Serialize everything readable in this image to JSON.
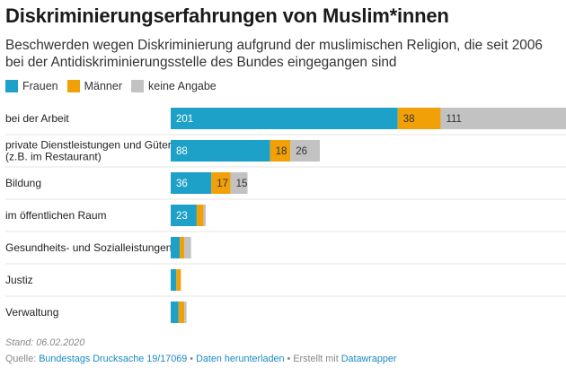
{
  "header": {
    "title": "Diskriminierungserfahrungen von Muslim*innen",
    "subtitle": "Beschwerden wegen Diskriminierung aufgrund der muslimischen Religion, die seit 2006 bei der Antidiskriminierungsstelle des Bundes eingegangen sind"
  },
  "colors": {
    "frauen": "#1da1c8",
    "maenner": "#f2a007",
    "keine": "#c2c2c2"
  },
  "chart_data": {
    "type": "bar",
    "stacked": true,
    "orientation": "horizontal",
    "legend_position": "top-left",
    "grid": false,
    "categories": [
      [
        "bei der Arbeit"
      ],
      [
        "private Dienstleistungen und Güter",
        "(z.B. im Restaurant)"
      ],
      [
        "Bildung"
      ],
      [
        "im öffentlichen Raum"
      ],
      [
        "Gesundheits- und Sozialleistungen"
      ],
      [
        "Justiz"
      ],
      [
        "Verwaltung"
      ]
    ],
    "series": [
      {
        "name": "Frauen",
        "key": "frauen",
        "values": [
          201,
          88,
          36,
          23,
          8,
          5,
          7
        ]
      },
      {
        "name": "Männer",
        "key": "maenner",
        "values": [
          38,
          18,
          17,
          6,
          4,
          4,
          5
        ]
      },
      {
        "name": "keine Angabe",
        "key": "keine",
        "values": [
          111,
          26,
          15,
          2,
          6,
          0,
          2
        ]
      }
    ],
    "label_threshold": 10,
    "xlim": [
      0,
      350
    ]
  },
  "footer": {
    "stand": "Stand: 06.02.2020",
    "source_prefix": "Quelle:",
    "source_link": "Bundestags Drucksache 19/17069",
    "sep1": "•",
    "download": "Daten herunterladen",
    "sep2": "•",
    "created": "Erstellt mit",
    "tool": "Datawrapper"
  }
}
